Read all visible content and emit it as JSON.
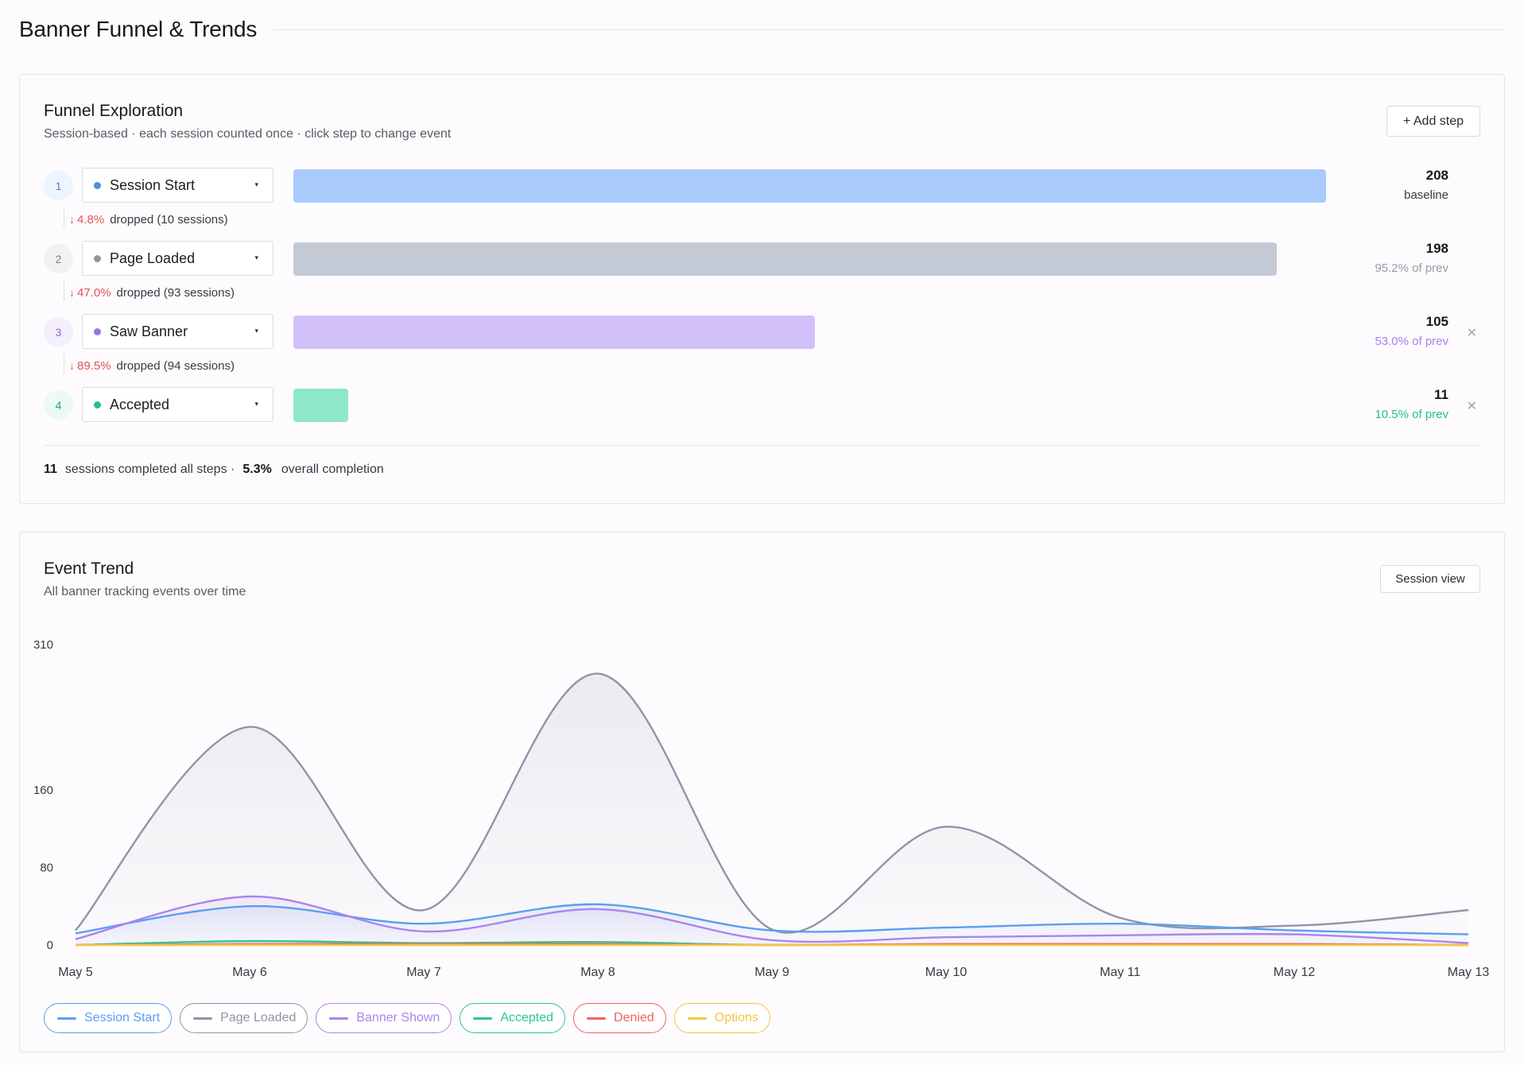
{
  "page": {
    "title": "Banner Funnel & Trends"
  },
  "funnel": {
    "title": "Funnel Exploration",
    "subtitle": "Session-based · each session counted once · click step to change event",
    "add_step_label": "+ Add step",
    "steps": [
      {
        "num": "1",
        "label": "Session Start",
        "count": "208",
        "rate": "baseline",
        "fraction": 1.0,
        "color": "#a8cafc",
        "dot": "#4a90e2",
        "rate_color": "#3a3940",
        "num_bg": "#eef4fd",
        "num_color": "#4a7fd0",
        "removable": false
      },
      {
        "num": "2",
        "label": "Page Loaded",
        "count": "198",
        "rate": "95.2% of prev",
        "fraction": 0.952,
        "color": "#c4c9d6",
        "dot": "#8f95a3",
        "rate_color": "#9c9ba4",
        "num_bg": "#f2f2f4",
        "num_color": "#7b7b85",
        "removable": false
      },
      {
        "num": "3",
        "label": "Saw Banner",
        "count": "105",
        "rate": "53.0% of prev",
        "fraction": 0.505,
        "color": "#d1c0fa",
        "dot": "#9a73e6",
        "rate_color": "#a682ee",
        "num_bg": "#f4effd",
        "num_color": "#8d6bd8",
        "removable": true
      },
      {
        "num": "4",
        "label": "Accepted",
        "count": "11",
        "rate": "10.5% of prev",
        "fraction": 0.053,
        "color": "#8ee8c8",
        "dot": "#23c28a",
        "rate_color": "#25c08a",
        "num_bg": "#ebfaf3",
        "num_color": "#22a873",
        "removable": true
      }
    ],
    "drops": [
      {
        "pct": "4.8%",
        "text": "dropped (10 sessions)"
      },
      {
        "pct": "47.0%",
        "text": "dropped (93 sessions)"
      },
      {
        "pct": "89.5%",
        "text": "dropped (94 sessions)"
      }
    ],
    "summary": {
      "completed": "11",
      "completed_text": "sessions completed all steps ·",
      "overall": "5.3%",
      "overall_text": "overall completion"
    }
  },
  "trend": {
    "title": "Event Trend",
    "subtitle": "All banner tracking events over time",
    "session_view_label": "Session view"
  },
  "icons": {
    "caret": "caret-down-icon",
    "remove": "close-icon",
    "drop": "arrow-down-icon"
  },
  "chart_data": {
    "type": "area",
    "x": [
      "May 5",
      "May 6",
      "May 7",
      "May 8",
      "May 9",
      "May 10",
      "May 11",
      "May 12",
      "May 13"
    ],
    "y_ticks": [
      0,
      80,
      160,
      310
    ],
    "ylim": [
      0,
      310
    ],
    "grid": false,
    "legend_placement": "bottom-left",
    "series": [
      {
        "name": "Session Start",
        "color": "#5b9ef0",
        "values": [
          12,
          40,
          22,
          42,
          15,
          18,
          22,
          15,
          11
        ]
      },
      {
        "name": "Page Loaded",
        "color": "#8f95a9",
        "values": [
          15,
          225,
          36,
          280,
          16,
          122,
          28,
          20,
          36
        ]
      },
      {
        "name": "Banner Shown",
        "color": "#ab84ee",
        "values": [
          6,
          50,
          14,
          37,
          5,
          8,
          10,
          11,
          2
        ]
      },
      {
        "name": "Accepted",
        "color": "#2cc793",
        "values": [
          0,
          4,
          2,
          3,
          0,
          1,
          1,
          1,
          0
        ]
      },
      {
        "name": "Denied",
        "color": "#ee6464",
        "values": [
          0,
          1,
          1,
          1,
          0,
          1,
          1,
          1,
          0
        ]
      },
      {
        "name": "Options",
        "color": "#f5c542",
        "values": [
          0,
          0,
          0,
          0,
          0,
          0,
          0,
          0,
          0
        ]
      }
    ]
  }
}
